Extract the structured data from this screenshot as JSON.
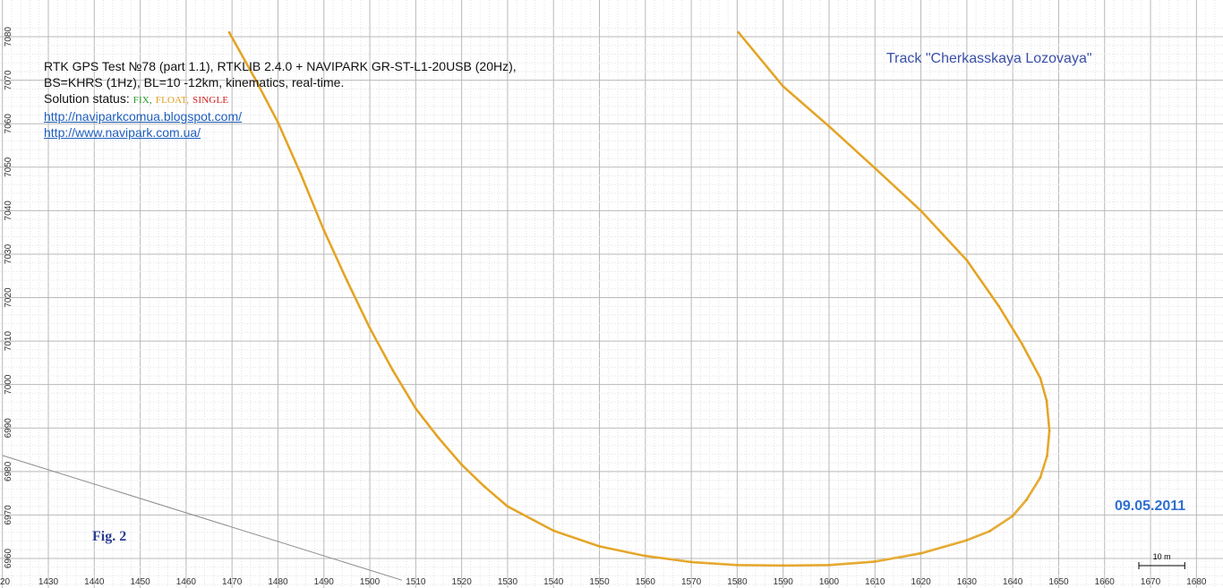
{
  "header": {
    "line1": "RTK GPS Test №78 (part 1.1), RTKLIB 2.4.0 + NAVIPARK GR-ST-L1-20USB (20Hz),",
    "line2": "BS=KHRS (1Hz), BL=10 -12km, kinematics, real-time.",
    "status_label": "Solution status:",
    "status_fix": "FIX,",
    "status_float": "FLOAT,",
    "status_single": "SINGLE",
    "link1": "http://naviparkcomua.blogspot.com/",
    "link2": "http://www.navipark.com.ua/"
  },
  "track_title": "Track \"Cherkasskaya Lozovaya\"",
  "date": "09.05.2011",
  "fig_label": "Fig. 2",
  "colors": {
    "fix": "#2a9a2a",
    "float": "#e0a020",
    "single": "#d42020",
    "grid": "#c8c8c8",
    "link": "#1f5fbf"
  },
  "chart_data": {
    "type": "scatter",
    "title": "",
    "xlabel": "",
    "ylabel": "",
    "grid": true,
    "xlim": [
      1420,
      1685
    ],
    "ylim": [
      6955,
      7081
    ],
    "x_ticks": [
      1430,
      1440,
      1450,
      1460,
      1470,
      1480,
      1490,
      1500,
      1510,
      1520,
      1530,
      1540,
      1550,
      1560,
      1570,
      1580,
      1590,
      1600,
      1610,
      1620,
      1630,
      1640,
      1650,
      1660,
      1670,
      1680
    ],
    "y_ticks": [
      6960,
      6970,
      6980,
      6990,
      7000,
      7010,
      7020,
      7030,
      7040,
      7050,
      7060,
      7070,
      7080
    ],
    "x_tick_labels": [
      "1430",
      "1440",
      "1450",
      "1460",
      "1470",
      "1480",
      "1490",
      "1500",
      "1510",
      "1520",
      "1530",
      "1540",
      "1550",
      "1560",
      "1570",
      "1580",
      "1590",
      "1600",
      "1610",
      "1620",
      "1630",
      "1640",
      "1650",
      "1660",
      "1670",
      "1680"
    ],
    "y_tick_labels": [
      "6960",
      "6970",
      "6980",
      "6990",
      "7000",
      "7010",
      "7020",
      "7030",
      "7040",
      "7050",
      "7060",
      "7070",
      "7080"
    ],
    "x_partial_label": "20",
    "series": [
      {
        "status": "FLOAT",
        "points": [
          [
            1469.4,
            7081.0
          ],
          [
            1475,
            7070.4
          ],
          [
            1480,
            7060.3
          ],
          [
            1485,
            7048.4
          ],
          [
            1490,
            7035.5
          ],
          [
            1495,
            7024.0
          ],
          [
            1500,
            7013.0
          ],
          [
            1505,
            7003.3
          ],
          [
            1510,
            6994.5
          ],
          [
            1515,
            6987.7
          ],
          [
            1520,
            6981.6
          ],
          [
            1525,
            6976.5
          ],
          [
            1530,
            6972.0
          ],
          [
            1540,
            6966.4
          ],
          [
            1550,
            6962.8
          ],
          [
            1560,
            6960.6
          ],
          [
            1570,
            6959.2
          ],
          [
            1580,
            6958.5
          ],
          [
            1590,
            6958.4
          ],
          [
            1600,
            6958.5
          ],
          [
            1610,
            6959.3
          ],
          [
            1620,
            6961.2
          ],
          [
            1630,
            6964.2
          ],
          [
            1635,
            6966.3
          ],
          [
            1640,
            6969.8
          ],
          [
            1643,
            6973.5
          ],
          [
            1646,
            6978.6
          ],
          [
            1647.5,
            6983.6
          ],
          [
            1648.0,
            6989.4
          ],
          [
            1647.4,
            6996.3
          ],
          [
            1646.0,
            7001.5
          ],
          [
            1642,
            7009.4
          ],
          [
            1637,
            7018.0
          ],
          [
            1630,
            7028.6
          ],
          [
            1620,
            7040.0
          ],
          [
            1610,
            7049.8
          ],
          [
            1600,
            7059.4
          ],
          [
            1590,
            7068.6
          ],
          [
            1580.3,
            7081.0
          ]
        ]
      }
    ],
    "reference_line": {
      "points": [
        [
          1420,
          6983.7
        ],
        [
          1507,
          6955
        ]
      ]
    },
    "scale_bar": {
      "label": "10 m",
      "length": 10
    }
  }
}
